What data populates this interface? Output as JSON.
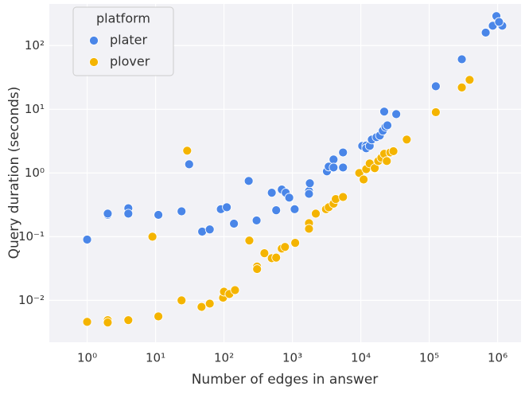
{
  "chart_data": {
    "type": "scatter",
    "xlabel": "Number of edges in answer",
    "ylabel": "Query duration (seconds)",
    "legend_title": "platform",
    "legend_position": "upper left",
    "log_x": true,
    "log_y": true,
    "grid": true,
    "xlim": [
      0.28,
      2200000
    ],
    "ylim": [
      0.0022,
      450
    ],
    "xticks": [
      {
        "value": 1,
        "label": "10⁰"
      },
      {
        "value": 10,
        "label": "10¹"
      },
      {
        "value": 100,
        "label": "10²"
      },
      {
        "value": 1000,
        "label": "10³"
      },
      {
        "value": 10000,
        "label": "10⁴"
      },
      {
        "value": 100000,
        "label": "10⁵"
      },
      {
        "value": 1000000,
        "label": "10⁶"
      }
    ],
    "yticks": [
      {
        "value": 0.01,
        "label": "10⁻²"
      },
      {
        "value": 0.1,
        "label": "10⁻¹"
      },
      {
        "value": 1,
        "label": "10⁰"
      },
      {
        "value": 10,
        "label": "10¹"
      },
      {
        "value": 100,
        "label": "10²"
      }
    ],
    "series": [
      {
        "name": "plater",
        "color": "#4a86e8",
        "x": [
          1,
          2,
          2,
          4,
          4,
          11,
          24,
          31,
          48,
          62,
          90,
          110,
          140,
          230,
          300,
          500,
          580,
          700,
          800,
          900,
          1080,
          1750,
          1800,
          1750,
          3200,
          3400,
          4000,
          4000,
          5500,
          5500,
          10500,
          12000,
          12000,
          13500,
          14500,
          17000,
          19000,
          21000,
          23000,
          22000,
          24500,
          33000,
          125000,
          300000,
          670000,
          960000,
          850000,
          1170000,
          1050000
        ],
        "values": [
          0.09,
          0.22,
          0.23,
          0.28,
          0.23,
          0.22,
          0.25,
          1.37,
          0.12,
          0.13,
          0.27,
          0.29,
          0.16,
          0.75,
          0.18,
          0.49,
          0.26,
          0.55,
          0.49,
          0.41,
          0.27,
          0.52,
          0.69,
          0.47,
          1.06,
          1.26,
          1.63,
          1.22,
          2.1,
          1.22,
          2.66,
          2.7,
          2.44,
          2.66,
          3.35,
          3.65,
          3.87,
          4.6,
          5.3,
          9.2,
          5.6,
          8.4,
          23,
          61,
          160,
          290,
          205,
          205,
          235
        ]
      },
      {
        "name": "plover",
        "color": "#f4b400",
        "x": [
          1,
          2,
          2,
          4,
          9,
          11,
          24,
          29,
          47,
          62,
          97,
          100,
          120,
          145,
          235,
          305,
          305,
          390,
          500,
          580,
          700,
          780,
          1100,
          1750,
          1750,
          2200,
          3100,
          3400,
          4000,
          4300,
          5500,
          9500,
          11000,
          12000,
          13500,
          16000,
          18000,
          20000,
          22000,
          24000,
          27000,
          30000,
          47000,
          125000,
          300000,
          390000
        ],
        "values": [
          0.0046,
          0.0049,
          0.0045,
          0.0049,
          0.1,
          0.0056,
          0.01,
          2.24,
          0.0079,
          0.0089,
          0.011,
          0.0137,
          0.0126,
          0.0145,
          0.087,
          0.034,
          0.031,
          0.055,
          0.046,
          0.047,
          0.065,
          0.069,
          0.08,
          0.163,
          0.133,
          0.23,
          0.27,
          0.29,
          0.33,
          0.39,
          0.42,
          1.0,
          0.79,
          1.15,
          1.41,
          1.19,
          1.54,
          1.73,
          2.0,
          1.54,
          2.1,
          2.2,
          3.35,
          9.0,
          22,
          29
        ]
      }
    ]
  }
}
